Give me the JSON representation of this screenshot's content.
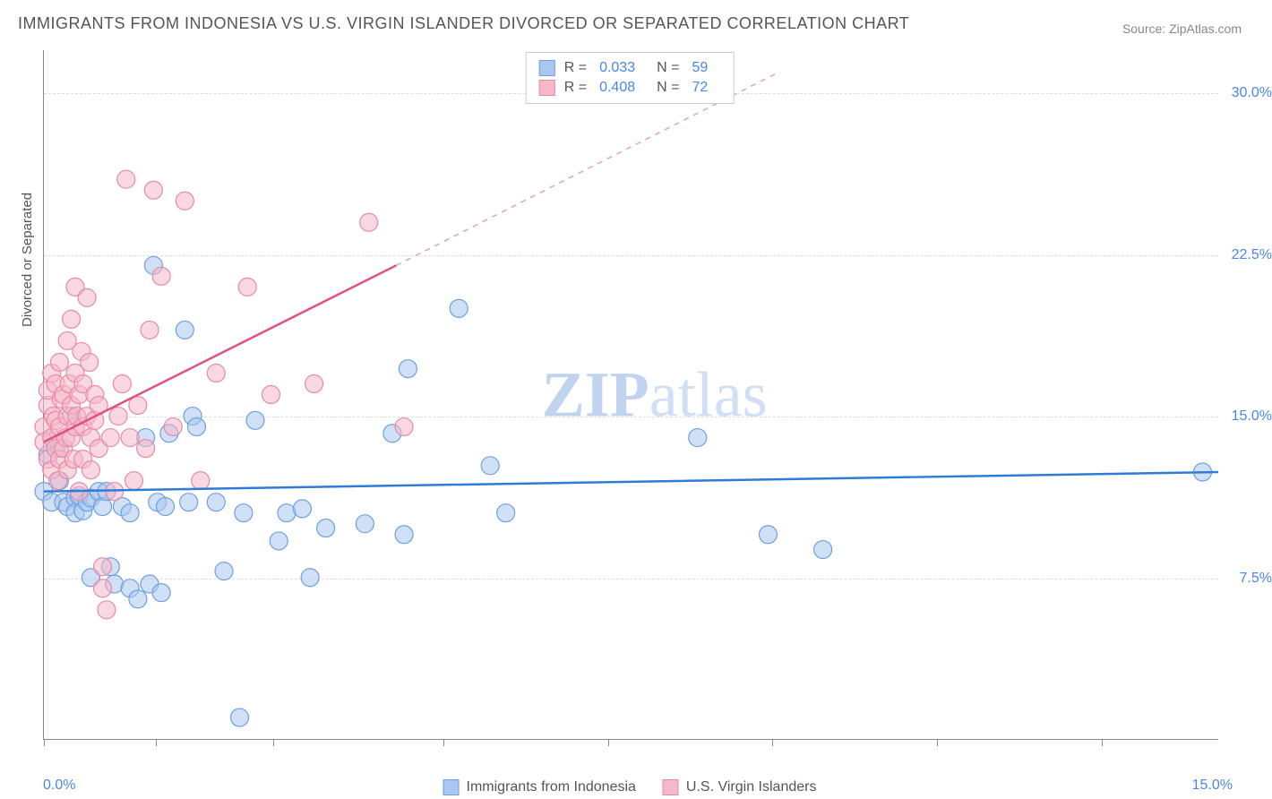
{
  "title": "IMMIGRANTS FROM INDONESIA VS U.S. VIRGIN ISLANDER DIVORCED OR SEPARATED CORRELATION CHART",
  "source": "Source: ZipAtlas.com",
  "watermark_bold": "ZIP",
  "watermark_light": "atlas",
  "y_axis_label": "Divorced or Separated",
  "x_axis": {
    "min_label": "0.0%",
    "max_label": "15.0%",
    "min": 0.0,
    "max": 15.0,
    "tick_positions_pct": [
      0,
      9.5,
      19.5,
      34,
      48,
      62,
      76,
      90
    ]
  },
  "y_axis": {
    "min": 0.0,
    "max": 32.0,
    "gridlines": [
      {
        "value": 7.5,
        "label": "7.5%"
      },
      {
        "value": 15.0,
        "label": "15.0%"
      },
      {
        "value": 22.5,
        "label": "22.5%"
      },
      {
        "value": 30.0,
        "label": "30.0%"
      }
    ]
  },
  "series": [
    {
      "name": "Immigrants from Indonesia",
      "color_fill": "#a9c7f0",
      "color_stroke": "#6ca0e0",
      "opacity": 0.55,
      "marker_radius": 10,
      "R": "0.033",
      "N": "59",
      "trend": {
        "x1": 0.0,
        "y1": 11.5,
        "x2": 15.0,
        "y2": 12.4,
        "color": "#2e7cd6",
        "width": 2.5,
        "dash": "none"
      },
      "points": [
        [
          0.0,
          11.5
        ],
        [
          0.05,
          13.2
        ],
        [
          0.1,
          11.0
        ],
        [
          0.1,
          14.0
        ],
        [
          0.2,
          13.5
        ],
        [
          0.2,
          12.0
        ],
        [
          0.25,
          11.0
        ],
        [
          0.3,
          10.8
        ],
        [
          0.35,
          15.0
        ],
        [
          0.4,
          11.2
        ],
        [
          0.4,
          10.5
        ],
        [
          0.45,
          11.3
        ],
        [
          0.5,
          10.6
        ],
        [
          0.55,
          11.0
        ],
        [
          0.6,
          11.2
        ],
        [
          0.6,
          7.5
        ],
        [
          0.7,
          11.5
        ],
        [
          0.75,
          10.8
        ],
        [
          0.8,
          11.5
        ],
        [
          0.85,
          8.0
        ],
        [
          0.9,
          7.2
        ],
        [
          1.0,
          10.8
        ],
        [
          1.1,
          7.0
        ],
        [
          1.1,
          10.5
        ],
        [
          1.2,
          6.5
        ],
        [
          1.3,
          14.0
        ],
        [
          1.35,
          7.2
        ],
        [
          1.4,
          22.0
        ],
        [
          1.45,
          11.0
        ],
        [
          1.5,
          6.8
        ],
        [
          1.55,
          10.8
        ],
        [
          1.6,
          14.2
        ],
        [
          1.8,
          19.0
        ],
        [
          1.85,
          11.0
        ],
        [
          1.9,
          15.0
        ],
        [
          1.95,
          14.5
        ],
        [
          2.2,
          11.0
        ],
        [
          2.3,
          7.8
        ],
        [
          2.5,
          1.0
        ],
        [
          2.55,
          10.5
        ],
        [
          2.7,
          14.8
        ],
        [
          3.0,
          9.2
        ],
        [
          3.1,
          10.5
        ],
        [
          3.3,
          10.7
        ],
        [
          3.4,
          7.5
        ],
        [
          3.6,
          9.8
        ],
        [
          4.1,
          10.0
        ],
        [
          4.45,
          14.2
        ],
        [
          4.6,
          9.5
        ],
        [
          4.65,
          17.2
        ],
        [
          5.3,
          20.0
        ],
        [
          5.7,
          12.7
        ],
        [
          5.9,
          10.5
        ],
        [
          8.35,
          14.0
        ],
        [
          9.25,
          9.5
        ],
        [
          9.95,
          8.8
        ],
        [
          14.8,
          12.4
        ]
      ]
    },
    {
      "name": "U.S. Virgin Islanders",
      "color_fill": "#f5b8c8",
      "color_stroke": "#e88aa5",
      "opacity": 0.55,
      "marker_radius": 10,
      "R": "0.408",
      "N": "72",
      "trend_solid": {
        "x1": 0.0,
        "y1": 13.8,
        "x2": 4.5,
        "y2": 22.0,
        "color": "#e05080",
        "width": 2.5
      },
      "trend_dash": {
        "x1": 4.5,
        "y1": 22.0,
        "x2": 9.4,
        "y2": 31.0,
        "color": "#e8a0b8",
        "width": 1.5
      },
      "points": [
        [
          0.0,
          14.5
        ],
        [
          0.0,
          13.8
        ],
        [
          0.05,
          13.0
        ],
        [
          0.05,
          15.5
        ],
        [
          0.05,
          16.2
        ],
        [
          0.1,
          12.5
        ],
        [
          0.1,
          14.0
        ],
        [
          0.1,
          17.0
        ],
        [
          0.12,
          15.0
        ],
        [
          0.15,
          13.5
        ],
        [
          0.15,
          16.5
        ],
        [
          0.15,
          14.8
        ],
        [
          0.18,
          12.0
        ],
        [
          0.2,
          14.5
        ],
        [
          0.2,
          17.5
        ],
        [
          0.2,
          13.0
        ],
        [
          0.22,
          15.8
        ],
        [
          0.25,
          16.0
        ],
        [
          0.25,
          13.5
        ],
        [
          0.28,
          14.0
        ],
        [
          0.3,
          18.5
        ],
        [
          0.3,
          15.0
        ],
        [
          0.3,
          12.5
        ],
        [
          0.32,
          16.5
        ],
        [
          0.35,
          14.0
        ],
        [
          0.35,
          19.5
        ],
        [
          0.35,
          15.5
        ],
        [
          0.38,
          13.0
        ],
        [
          0.4,
          17.0
        ],
        [
          0.4,
          21.0
        ],
        [
          0.4,
          14.5
        ],
        [
          0.42,
          15.0
        ],
        [
          0.45,
          16.0
        ],
        [
          0.45,
          11.5
        ],
        [
          0.48,
          18.0
        ],
        [
          0.5,
          14.5
        ],
        [
          0.5,
          16.5
        ],
        [
          0.5,
          13.0
        ],
        [
          0.55,
          20.5
        ],
        [
          0.55,
          15.0
        ],
        [
          0.58,
          17.5
        ],
        [
          0.6,
          14.0
        ],
        [
          0.6,
          12.5
        ],
        [
          0.65,
          16.0
        ],
        [
          0.65,
          14.8
        ],
        [
          0.7,
          15.5
        ],
        [
          0.7,
          13.5
        ],
        [
          0.75,
          8.0
        ],
        [
          0.75,
          7.0
        ],
        [
          0.8,
          6.0
        ],
        [
          0.85,
          14.0
        ],
        [
          0.9,
          11.5
        ],
        [
          0.95,
          15.0
        ],
        [
          1.0,
          16.5
        ],
        [
          1.05,
          26.0
        ],
        [
          1.1,
          14.0
        ],
        [
          1.15,
          12.0
        ],
        [
          1.2,
          15.5
        ],
        [
          1.3,
          13.5
        ],
        [
          1.35,
          19.0
        ],
        [
          1.4,
          25.5
        ],
        [
          1.5,
          21.5
        ],
        [
          1.65,
          14.5
        ],
        [
          1.8,
          25.0
        ],
        [
          2.0,
          12.0
        ],
        [
          2.2,
          17.0
        ],
        [
          2.6,
          21.0
        ],
        [
          2.9,
          16.0
        ],
        [
          3.45,
          16.5
        ],
        [
          4.15,
          24.0
        ],
        [
          4.6,
          14.5
        ]
      ]
    }
  ],
  "legend_top": [
    {
      "swatch_fill": "#a9c7f0",
      "swatch_stroke": "#6ca0e0",
      "R_label": "R =",
      "R_val": "0.033",
      "N_label": "N =",
      "N_val": "59"
    },
    {
      "swatch_fill": "#f5b8c8",
      "swatch_stroke": "#e88aa5",
      "R_label": "R =",
      "R_val": "0.408",
      "N_label": "N =",
      "N_val": "72"
    }
  ],
  "legend_bottom": [
    {
      "swatch_fill": "#a9c7f0",
      "swatch_stroke": "#6ca0e0",
      "label": "Immigrants from Indonesia"
    },
    {
      "swatch_fill": "#f5b8c8",
      "swatch_stroke": "#e88aa5",
      "label": "U.S. Virgin Islanders"
    }
  ],
  "colors": {
    "axis_text": "#4a86e8",
    "grid": "#dddddd",
    "border": "#888888"
  }
}
